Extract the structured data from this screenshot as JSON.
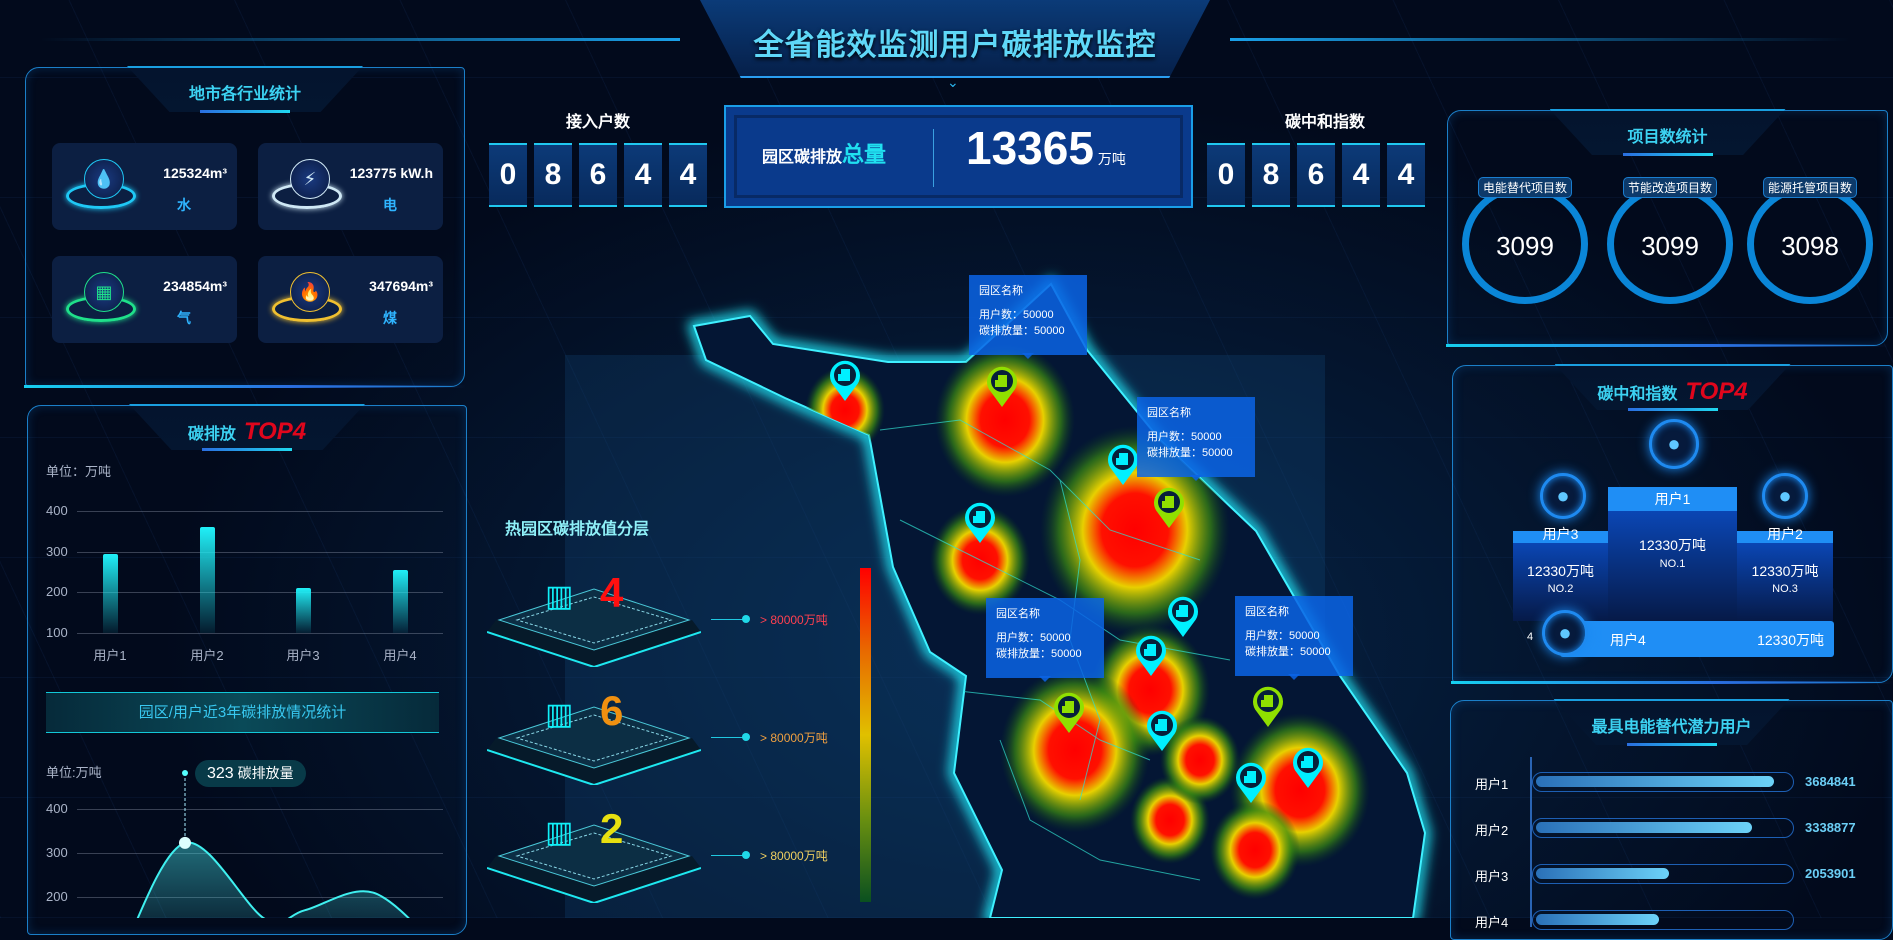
{
  "header": {
    "title": "全省能效监测用户碳排放监控"
  },
  "industry": {
    "title": "地市各行业统计",
    "items": [
      {
        "value": "125324m³",
        "label": "水",
        "icon": "water-drop-icon",
        "color": "#1fc8f5"
      },
      {
        "value": "123775 kW.h",
        "label": "电",
        "icon": "lightning-icon",
        "color": "#cfe8f5"
      },
      {
        "value": "234854m³",
        "label": "气",
        "icon": "gas-icon",
        "color": "#1fe08a"
      },
      {
        "value": "347694m³",
        "label": "煤",
        "icon": "fire-icon",
        "color": "#f0c030"
      }
    ]
  },
  "emission_top": {
    "title": "碳排放",
    "badge": "TOP4",
    "unit": "单位：万吨"
  },
  "trend": {
    "banner": "园区/用户近3年碳排放情况统计",
    "unit": "单位:万吨",
    "tooltip_value": "323",
    "tooltip_label": "碳排放量"
  },
  "chart_data": [
    {
      "type": "bar",
      "categories": [
        "用户1",
        "用户2",
        "用户3",
        "用户4"
      ],
      "values": [
        295,
        360,
        210,
        255
      ],
      "ylabel": "单位：万吨",
      "ylim": [
        100,
        400
      ],
      "yticks": [
        400,
        300,
        200,
        100
      ],
      "grid": true
    },
    {
      "type": "area",
      "values": [
        60,
        323,
        150,
        170,
        210,
        80
      ],
      "ylabel": "单位:万吨",
      "yticks": [
        400,
        300,
        200
      ],
      "highlight": {
        "value": 323,
        "label": "碳排放量"
      },
      "grid": true
    }
  ],
  "access": {
    "label": "接入户数",
    "digits": [
      "0",
      "8",
      "6",
      "4",
      "4"
    ]
  },
  "total": {
    "label_a": "园区碳排放",
    "label_b": "总量",
    "value": "13365",
    "unit": "万吨"
  },
  "neutral": {
    "label": "碳中和指数",
    "digits": [
      "0",
      "8",
      "6",
      "4",
      "4"
    ]
  },
  "layers": {
    "title": "热园区碳排放值分层",
    "items": [
      {
        "count": "4",
        "range": "> 80000万吨",
        "color": "#ff1010",
        "text_color": "#ff4050"
      },
      {
        "count": "6",
        "range": "> 80000万吨",
        "color": "#f09010",
        "text_color": "#f0a040"
      },
      {
        "count": "2",
        "range": "> 80000万吨",
        "color": "#e8e010",
        "text_color": "#f0d060"
      }
    ]
  },
  "map": {
    "tooltips": [
      {
        "name": "园区名称",
        "users": "用户数：50000",
        "emission": "碳排放量：50000"
      },
      {
        "name": "园区名称",
        "users": "用户数：50000",
        "emission": "碳排放量：50000"
      },
      {
        "name": "园区名称",
        "users": "用户数：50000",
        "emission": "碳排放量：50000"
      },
      {
        "name": "园区名称",
        "users": "用户数：50000",
        "emission": "碳排放量：50000"
      }
    ],
    "pin_colors": [
      "#00f0ff",
      "#90e000",
      "#00f0ff",
      "#90e000",
      "#00f0ff",
      "#00f0ff",
      "#00f0ff",
      "#90e000",
      "#00f0ff",
      "#90e000",
      "#00f0ff",
      "#00f0ff"
    ]
  },
  "projects": {
    "title": "项目数统计",
    "items": [
      {
        "label": "电能替代项目数",
        "value": "3099"
      },
      {
        "label": "节能改造项目数",
        "value": "3099"
      },
      {
        "label": "能源托管项目数",
        "value": "3098"
      }
    ]
  },
  "neutral_top": {
    "title": "碳中和指数",
    "badge": "TOP4",
    "podium": [
      {
        "name": "用户1",
        "value": "12330万吨",
        "rank": "NO.1"
      },
      {
        "name": "用户2",
        "value": "12330万吨",
        "rank": "NO.3"
      },
      {
        "name": "用户3",
        "value": "12330万吨",
        "rank": "NO.2"
      }
    ],
    "fourth": {
      "rank": "4",
      "name": "用户4",
      "value": "12330万吨"
    }
  },
  "potential": {
    "title": "最具电能替代潜力用户",
    "rows": [
      {
        "name": "用户1",
        "value": "3684841",
        "num": 3684841
      },
      {
        "name": "用户2",
        "value": "3338877",
        "num": 3338877
      },
      {
        "name": "用户3",
        "value": "2053901",
        "num": 2053901
      },
      {
        "name": "用户4",
        "num": 1900000
      }
    ]
  }
}
